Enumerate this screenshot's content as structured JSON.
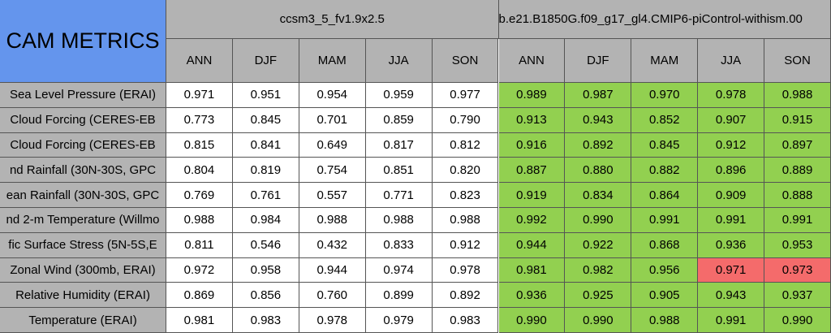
{
  "title": "CAM METRICS",
  "groups": [
    "ccsm3_5_fv1.9x2.5",
    "b.e21.B1850G.f09_g17_gl4.CMIP6-piControl-withism.00"
  ],
  "seasons": [
    "ANN",
    "DJF",
    "MAM",
    "JJA",
    "SON"
  ],
  "colors": {
    "title_fill": "#6495ed",
    "header_fill": "#b3b3b3",
    "group_0_fill": "#ffffff",
    "group_1_fill": "#92d050",
    "highlight_fill": "#f46b6b"
  },
  "rows": [
    {
      "label": "Sea Level Pressure (ERAI)",
      "values": [
        "0.971",
        "0.951",
        "0.954",
        "0.959",
        "0.977",
        "0.989",
        "0.987",
        "0.970",
        "0.978",
        "0.988"
      ]
    },
    {
      "label": "Cloud Forcing (CERES-EB",
      "values": [
        "0.773",
        "0.845",
        "0.701",
        "0.859",
        "0.790",
        "0.913",
        "0.943",
        "0.852",
        "0.907",
        "0.915"
      ]
    },
    {
      "label": "Cloud Forcing (CERES-EB",
      "values": [
        "0.815",
        "0.841",
        "0.649",
        "0.817",
        "0.812",
        "0.916",
        "0.892",
        "0.845",
        "0.912",
        "0.897"
      ]
    },
    {
      "label": "nd Rainfall (30N-30S, GPC",
      "values": [
        "0.804",
        "0.819",
        "0.754",
        "0.851",
        "0.820",
        "0.887",
        "0.880",
        "0.882",
        "0.896",
        "0.889"
      ]
    },
    {
      "label": "ean Rainfall (30N-30S, GPC",
      "values": [
        "0.769",
        "0.761",
        "0.557",
        "0.771",
        "0.823",
        "0.919",
        "0.834",
        "0.864",
        "0.909",
        "0.888"
      ]
    },
    {
      "label": "nd 2-m Temperature (Willmo",
      "values": [
        "0.988",
        "0.984",
        "0.988",
        "0.988",
        "0.988",
        "0.992",
        "0.990",
        "0.991",
        "0.991",
        "0.991"
      ]
    },
    {
      "label": "fic Surface Stress (5N-5S,E",
      "values": [
        "0.811",
        "0.546",
        "0.432",
        "0.833",
        "0.912",
        "0.944",
        "0.922",
        "0.868",
        "0.936",
        "0.953"
      ]
    },
    {
      "label": "Zonal Wind (300mb, ERAI)",
      "values": [
        "0.972",
        "0.958",
        "0.944",
        "0.974",
        "0.978",
        "0.981",
        "0.982",
        "0.956",
        "0.971",
        "0.973"
      ],
      "highlight": [
        8,
        9
      ]
    },
    {
      "label": "Relative Humidity (ERAI)",
      "values": [
        "0.869",
        "0.856",
        "0.760",
        "0.899",
        "0.892",
        "0.936",
        "0.925",
        "0.905",
        "0.943",
        "0.937"
      ]
    },
    {
      "label": "Temperature (ERAI)",
      "values": [
        "0.981",
        "0.983",
        "0.978",
        "0.979",
        "0.983",
        "0.990",
        "0.990",
        "0.988",
        "0.991",
        "0.990"
      ]
    }
  ]
}
